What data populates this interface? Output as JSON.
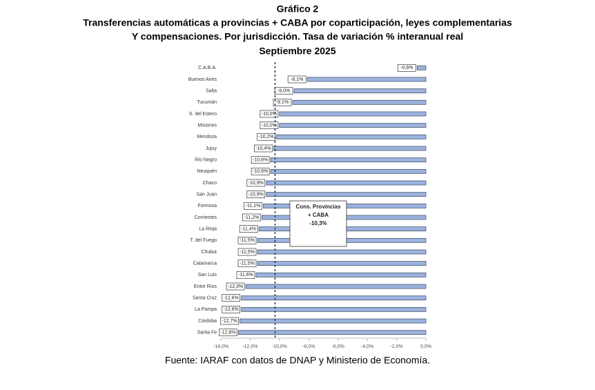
{
  "chart_data": {
    "type": "hbar",
    "title": "Gráfico 2",
    "subtitle": [
      "Transferencias automáticas a provincias + CABA por coparticipación, leyes complementarias",
      "Y compensaciones. Por jurisdicción. Tasa de variación % interanual real",
      "Septiembre 2025"
    ],
    "categories": [
      "C.A.B.A.",
      "Buenos Aires",
      "Salta",
      "Tucumán",
      "S. del Estero",
      "Misiones",
      "Mendoza",
      "Jujuy",
      "Río Negro",
      "Neuquén",
      "Chaco",
      "San Juan",
      "Formosa",
      "Corrientes",
      "La Rioja",
      "T. del Fuego",
      "Chubut",
      "Catamarca",
      "San Luis",
      "Entre Ríos",
      "Santa Cruz",
      "La Pampa",
      "Córdoba",
      "Santa Fe"
    ],
    "values": [
      -0.6,
      -8.1,
      -9.0,
      -9.1,
      -10.0,
      -10.0,
      -10.2,
      -10.4,
      -10.6,
      -10.6,
      -10.9,
      -10.9,
      -11.1,
      -11.2,
      -11.4,
      -11.5,
      -11.5,
      -11.5,
      -11.6,
      -12.3,
      -12.6,
      -12.6,
      -12.7,
      -12.8
    ],
    "value_labels": [
      "-0,6%",
      "-8,1%",
      "-9,0%",
      "-9,1%",
      "-10,0%",
      "-10,0%",
      "-10,2%",
      "-10,4%",
      "-10,6%",
      "-10,6%",
      "-10,9%",
      "-10,9%",
      "-11,1%",
      "-11,2%",
      "-11,4%",
      "-11,5%",
      "-11,5%",
      "-11,5%",
      "-11,6%",
      "-12,3%",
      "-12,6%",
      "-12,6%",
      "-12,7%",
      "-12,8%"
    ],
    "color": "#9db3de",
    "xlim": [
      -14,
      0
    ],
    "xticks": [
      {
        "value": -14,
        "label": "-14,0%"
      },
      {
        "value": -12,
        "label": "-12,0%"
      },
      {
        "value": -10,
        "label": "-10,0%"
      },
      {
        "value": -8,
        "label": "-8,0%"
      },
      {
        "value": -6,
        "label": "-6,0%"
      },
      {
        "value": -4,
        "label": "-4,0%"
      },
      {
        "value": -2,
        "label": "-2,0%"
      },
      {
        "value": 0,
        "label": "0,0%"
      }
    ],
    "reference": {
      "value": -10.3,
      "label_lines": [
        "Cons. Provincias",
        "+ CABA",
        "-10,3%"
      ]
    },
    "source": "Fuente: IARAF con datos de DNAP y Ministerio de Economía."
  }
}
